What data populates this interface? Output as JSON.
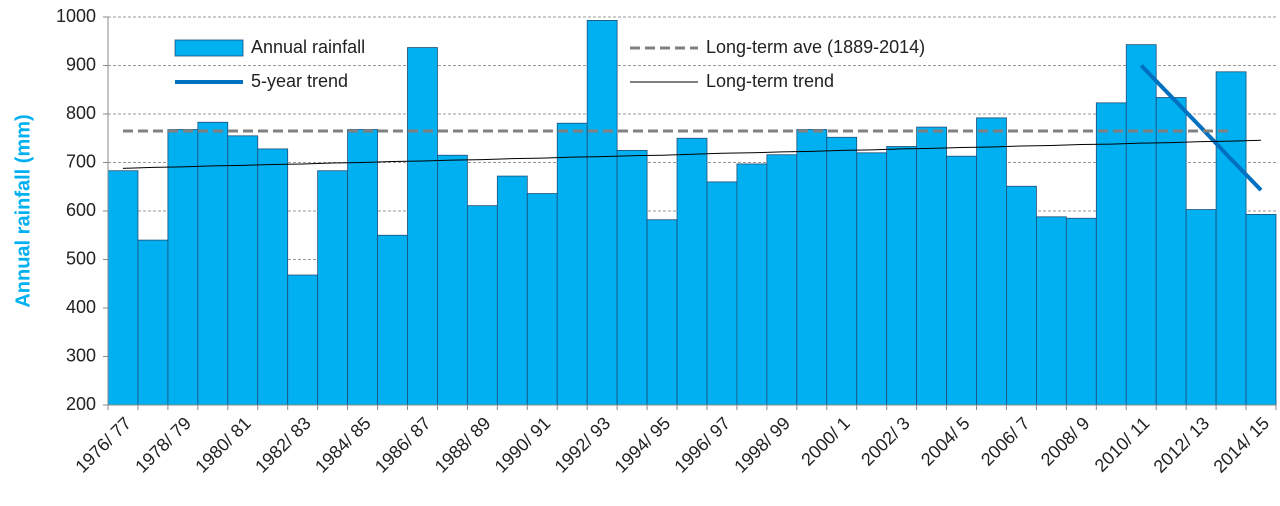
{
  "chart_data": {
    "type": "bar",
    "y_label": "Annual rainfall (mm)",
    "categories": [
      "1976/ 77",
      null,
      "1978/ 79",
      null,
      "1980/ 81",
      null,
      "1982/ 83",
      null,
      "1984/ 85",
      null,
      "1986/ 87",
      null,
      "1988/ 89",
      null,
      "1990/ 91",
      null,
      "1992/ 93",
      null,
      "1994/ 95",
      null,
      "1996/ 97",
      null,
      "1998/ 99",
      null,
      "2000/ 1",
      null,
      "2002/ 3",
      null,
      "2004/ 5",
      null,
      "2006/ 7",
      null,
      "2008/ 9",
      null,
      "2010/ 11",
      null,
      "2012/ 13",
      null,
      "2014/ 15"
    ],
    "series": [
      {
        "name": "Annual rainfall",
        "type": "bar",
        "color": "#00b0f0",
        "values": [
          683,
          540,
          768,
          783,
          755,
          728,
          468,
          683,
          768,
          550,
          937,
          715,
          611,
          672,
          636,
          781,
          993,
          725,
          582,
          750,
          660,
          697,
          716,
          768,
          752,
          720,
          733,
          773,
          713,
          792,
          651,
          588,
          585,
          823,
          943,
          834,
          603,
          887,
          593
        ]
      },
      {
        "name": "5-year trend",
        "type": "line",
        "color": "#0070c0",
        "width": 4,
        "values": [
          null,
          null,
          null,
          null,
          null,
          null,
          null,
          null,
          null,
          null,
          null,
          null,
          null,
          null,
          null,
          null,
          null,
          null,
          null,
          null,
          null,
          null,
          null,
          null,
          null,
          null,
          null,
          null,
          null,
          null,
          null,
          null,
          null,
          null,
          900,
          836,
          772,
          707,
          643
        ]
      },
      {
        "name": "Long-term ave (1889-2014)",
        "type": "line",
        "color": "#808080",
        "width": 3,
        "dashed": true,
        "values": [
          765,
          765,
          765,
          765,
          765,
          765,
          765,
          765,
          765,
          765,
          765,
          765,
          765,
          765,
          765,
          765,
          765,
          765,
          765,
          765,
          765,
          765,
          765,
          765,
          765,
          765,
          765,
          765,
          765,
          765,
          765,
          765,
          765,
          765,
          765,
          765,
          765,
          765,
          null
        ]
      },
      {
        "name": "Long-term trend",
        "type": "line",
        "color": "#000000",
        "width": 1,
        "values": [
          688,
          690,
          691,
          693,
          694,
          696,
          697,
          699,
          700,
          702,
          703,
          705,
          706,
          708,
          709,
          711,
          712,
          714,
          715,
          717,
          719,
          720,
          722,
          723,
          725,
          726,
          728,
          729,
          731,
          732,
          734,
          735,
          737,
          738,
          740,
          741,
          743,
          744,
          746
        ]
      }
    ],
    "ylim": [
      200,
      1000
    ],
    "yticks": [
      200,
      300,
      400,
      500,
      600,
      700,
      800,
      900,
      1000
    ],
    "grid": true
  }
}
